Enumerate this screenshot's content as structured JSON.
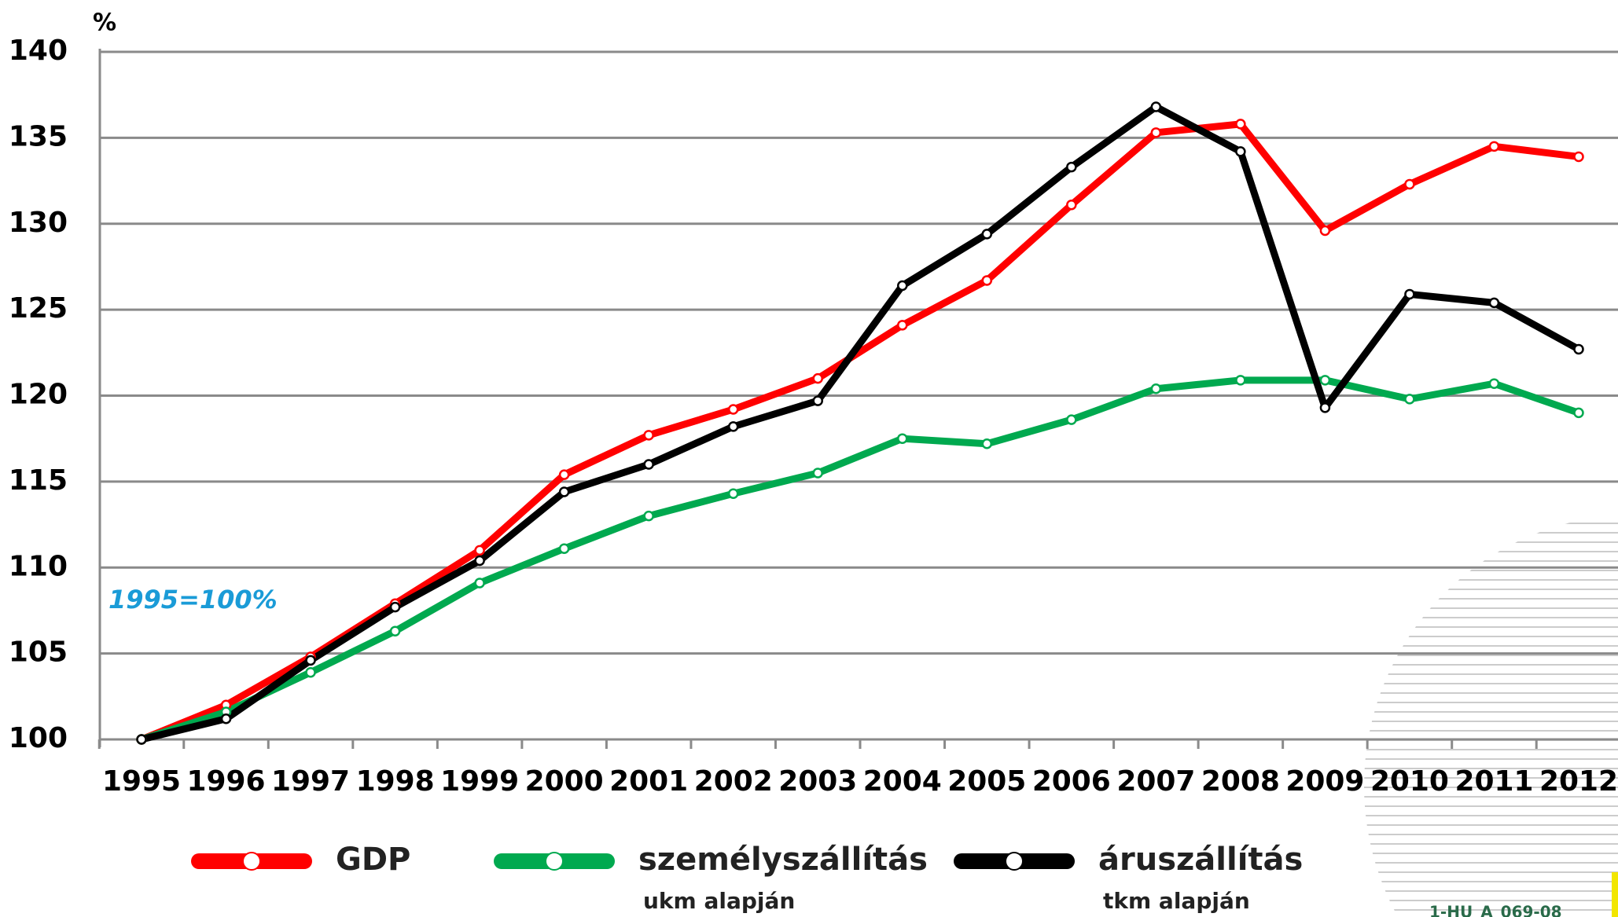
{
  "chart_data": {
    "type": "line",
    "y_unit": "%",
    "annotation": "1995=100%",
    "code": "1-HU_A_069-08",
    "categories": [
      "1995",
      "1996",
      "1997",
      "1998",
      "1999",
      "2000",
      "2001",
      "2002",
      "2003",
      "2004",
      "2005",
      "2006",
      "2007",
      "2008",
      "2009",
      "2010",
      "2011",
      "2012"
    ],
    "series": [
      {
        "name": "GDP",
        "color": "#ff0000",
        "values": [
          100,
          102.0,
          104.8,
          107.9,
          111.0,
          115.4,
          117.7,
          119.2,
          121.0,
          124.1,
          126.7,
          131.1,
          135.3,
          135.8,
          129.6,
          132.3,
          134.5,
          133.9
        ]
      },
      {
        "name": "személyszállítás",
        "sublabel": "ukm alapján",
        "color": "#00a94f",
        "values": [
          100,
          101.6,
          103.9,
          106.3,
          109.1,
          111.1,
          113.0,
          114.3,
          115.5,
          117.5,
          117.2,
          118.6,
          120.4,
          120.9,
          120.9,
          119.8,
          120.7,
          119.0
        ]
      },
      {
        "name": "áruszállítás",
        "sublabel": "tkm alapján",
        "color": "#000000",
        "values": [
          100,
          101.2,
          104.6,
          107.7,
          110.4,
          114.4,
          116.0,
          118.2,
          119.7,
          126.4,
          129.4,
          133.3,
          136.8,
          134.2,
          119.3,
          125.9,
          125.4,
          122.7
        ]
      }
    ],
    "ylim": [
      100,
      140
    ],
    "yticks": [
      100,
      105,
      110,
      115,
      120,
      125,
      130,
      135,
      140
    ],
    "grid": true
  }
}
